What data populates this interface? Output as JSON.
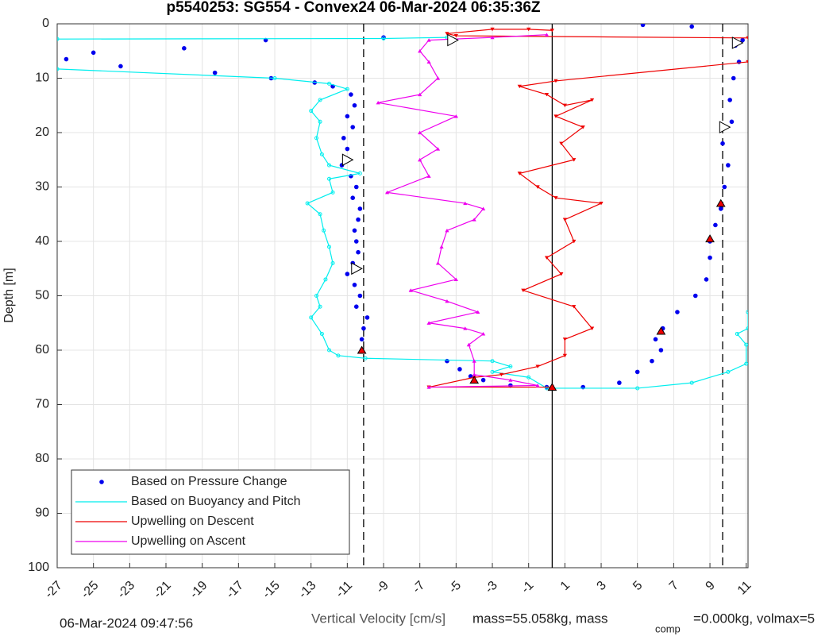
{
  "chart_data": {
    "type": "scatter",
    "title": "p5540253: SG554 - Convex24 06-Mar-2024 06:35:36Z",
    "xlabel": "Vertical Velocity [cm/s]",
    "ylabel": "Depth [m]",
    "footer_time": "06-Mar-2024 09:47:56",
    "footer_mass": "mass=55.058kg, mass",
    "footer_sub": "comp",
    "footer_rest": "=0.000kg, volmax=5",
    "xlim": [
      -27,
      11.1
    ],
    "ylim": [
      100,
      0
    ],
    "xticks": [
      -27,
      -25,
      -23,
      -21,
      -19,
      -17,
      -15,
      -13,
      -11,
      -9,
      -7,
      -5,
      -3,
      -1,
      1,
      3,
      5,
      7,
      9,
      11
    ],
    "yticks": [
      0,
      10,
      20,
      30,
      40,
      50,
      60,
      70,
      80,
      90,
      100
    ],
    "grid": true,
    "legend": "lower left",
    "series": [
      {
        "name": "Based on Pressure Change",
        "color": "#0000ee",
        "style": "dots",
        "x": [
          -26.5,
          -25,
          -23.5,
          -20,
          -18.3,
          -15.5,
          -15.2,
          -12.8,
          -11.8,
          -10.8,
          -10.6,
          -11,
          -10.7,
          -11.2,
          -11,
          -11.3,
          -10.8,
          -10.5,
          -10.7,
          -10.3,
          -10.4,
          -10.6,
          -10.5,
          -10.4,
          -10.7,
          -11,
          -10.6,
          -10.3,
          -10.5,
          -9.9,
          -10.1,
          -10.2,
          -10.2,
          -5.5,
          -4.8,
          -4.2,
          -3.5,
          -2,
          0,
          2,
          4,
          5,
          5.8,
          6.3,
          6.0,
          6.4,
          7.2,
          8.2,
          8.8,
          9.0,
          9.0,
          9.3,
          9.6,
          9.8,
          10.0,
          9.7,
          10.2,
          10.1,
          10.3,
          10.6,
          10.4,
          10.8,
          5.3,
          8.0,
          -9
        ],
        "y": [
          6.5,
          5.3,
          7.8,
          4.5,
          9,
          3,
          10,
          10.8,
          11.5,
          13,
          15,
          17,
          19,
          21,
          23,
          26,
          28,
          30,
          32,
          34,
          36,
          38,
          40,
          42,
          44,
          46,
          48,
          50,
          52,
          54,
          56,
          58,
          60,
          62,
          63.5,
          64.8,
          65.5,
          66.5,
          66.8,
          66.8,
          66,
          64,
          62,
          60,
          58,
          56,
          53,
          50,
          47,
          43,
          40,
          37,
          34,
          30,
          26,
          22,
          18,
          14,
          10,
          7,
          4,
          3,
          0.2,
          0.5,
          2.5
        ]
      },
      {
        "name": "Based on Buoyancy and Pitch",
        "color": "#00eeee",
        "style": "circles",
        "x": [
          -27,
          -9,
          -5.5,
          null,
          -27,
          -15,
          -12,
          -11,
          -12.5,
          -13,
          -12.5,
          -12.7,
          -12.4,
          -12,
          -10.3,
          -12,
          -11.8,
          -13.2,
          -12.5,
          -12.3,
          -12.0,
          -11.8,
          -12.2,
          -12.7,
          -12.5,
          -13,
          -12.4,
          -12,
          -11.5,
          -10,
          -3,
          -2,
          -3,
          -1,
          0,
          5,
          8,
          10,
          11,
          11,
          10.5,
          11.1,
          11.1
        ],
        "y": [
          2.8,
          2.7,
          2.5,
          null,
          8.3,
          10,
          11,
          12,
          14,
          16,
          18,
          21,
          24,
          26,
          27.5,
          28.5,
          31,
          33,
          35,
          38,
          41,
          44,
          47,
          50,
          52,
          54,
          57,
          60,
          61,
          61.5,
          62,
          63,
          64,
          65,
          67,
          67,
          66,
          64,
          62.5,
          59,
          57,
          56,
          53
        ]
      },
      {
        "name": "Upwelling on Descent",
        "color": "#ee0000",
        "style": "down",
        "x": [
          0.3,
          -1,
          -3,
          -5.5,
          -5,
          11.1,
          null,
          11.1,
          0.5,
          -1.5,
          0,
          1,
          2.5,
          0.5,
          2,
          0.8,
          1.5,
          -1.5,
          -0.5,
          0.5,
          3,
          1,
          1.5,
          0,
          0.8,
          -1.3,
          1.5,
          2.5,
          1,
          1,
          -0.5,
          -2.5,
          -4,
          -6.5,
          0.3
        ],
        "y": [
          1.2,
          1,
          1,
          1.8,
          2.2,
          2.6,
          null,
          7,
          10.5,
          11.5,
          13,
          15,
          14,
          17,
          19,
          22,
          25,
          27.5,
          30,
          32,
          33,
          36,
          40,
          43,
          46,
          49,
          52,
          56,
          58,
          61,
          63,
          64.5,
          65,
          66.8,
          66.8
        ]
      },
      {
        "name": "Upwelling on Ascent",
        "color": "#ee00ee",
        "style": "up",
        "x": [
          -6.5,
          -0.5,
          -2,
          -4,
          -4,
          -4.3,
          -3.5,
          -4.5,
          -6.5,
          -3.8,
          -5.5,
          -7.5,
          -5,
          -6,
          -5.8,
          -5.5,
          -4,
          -3.5,
          -4.5,
          -8.8,
          -6.5,
          -7,
          -6,
          -7,
          -5,
          -9.3,
          -7,
          -6,
          -6.5,
          -7,
          -6.5,
          -3,
          0
        ],
        "y": [
          66.8,
          66.5,
          65.5,
          64.5,
          62,
          59,
          57,
          56,
          55,
          53,
          51,
          49,
          47,
          44,
          41,
          38,
          36,
          34,
          33,
          31,
          28,
          25,
          23,
          20,
          17,
          14.5,
          13,
          10,
          7,
          5,
          3,
          2.5,
          2
        ]
      }
    ],
    "vlines": [
      {
        "x": -10.1,
        "dash": true
      },
      {
        "x": 9.7,
        "dash": true
      },
      {
        "x": 0.3,
        "dash": false
      }
    ],
    "open_markers": {
      "x": [
        -5.2,
        10.5,
        9.8,
        -11,
        -10.5
      ],
      "y": [
        3,
        3.5,
        19,
        25,
        45
      ]
    },
    "red_markers": {
      "x": [
        -10.2,
        6.3,
        9.0,
        -4,
        0.3,
        9.6
      ],
      "y": [
        60,
        56.5,
        39.5,
        65.5,
        66.8,
        33
      ]
    }
  }
}
